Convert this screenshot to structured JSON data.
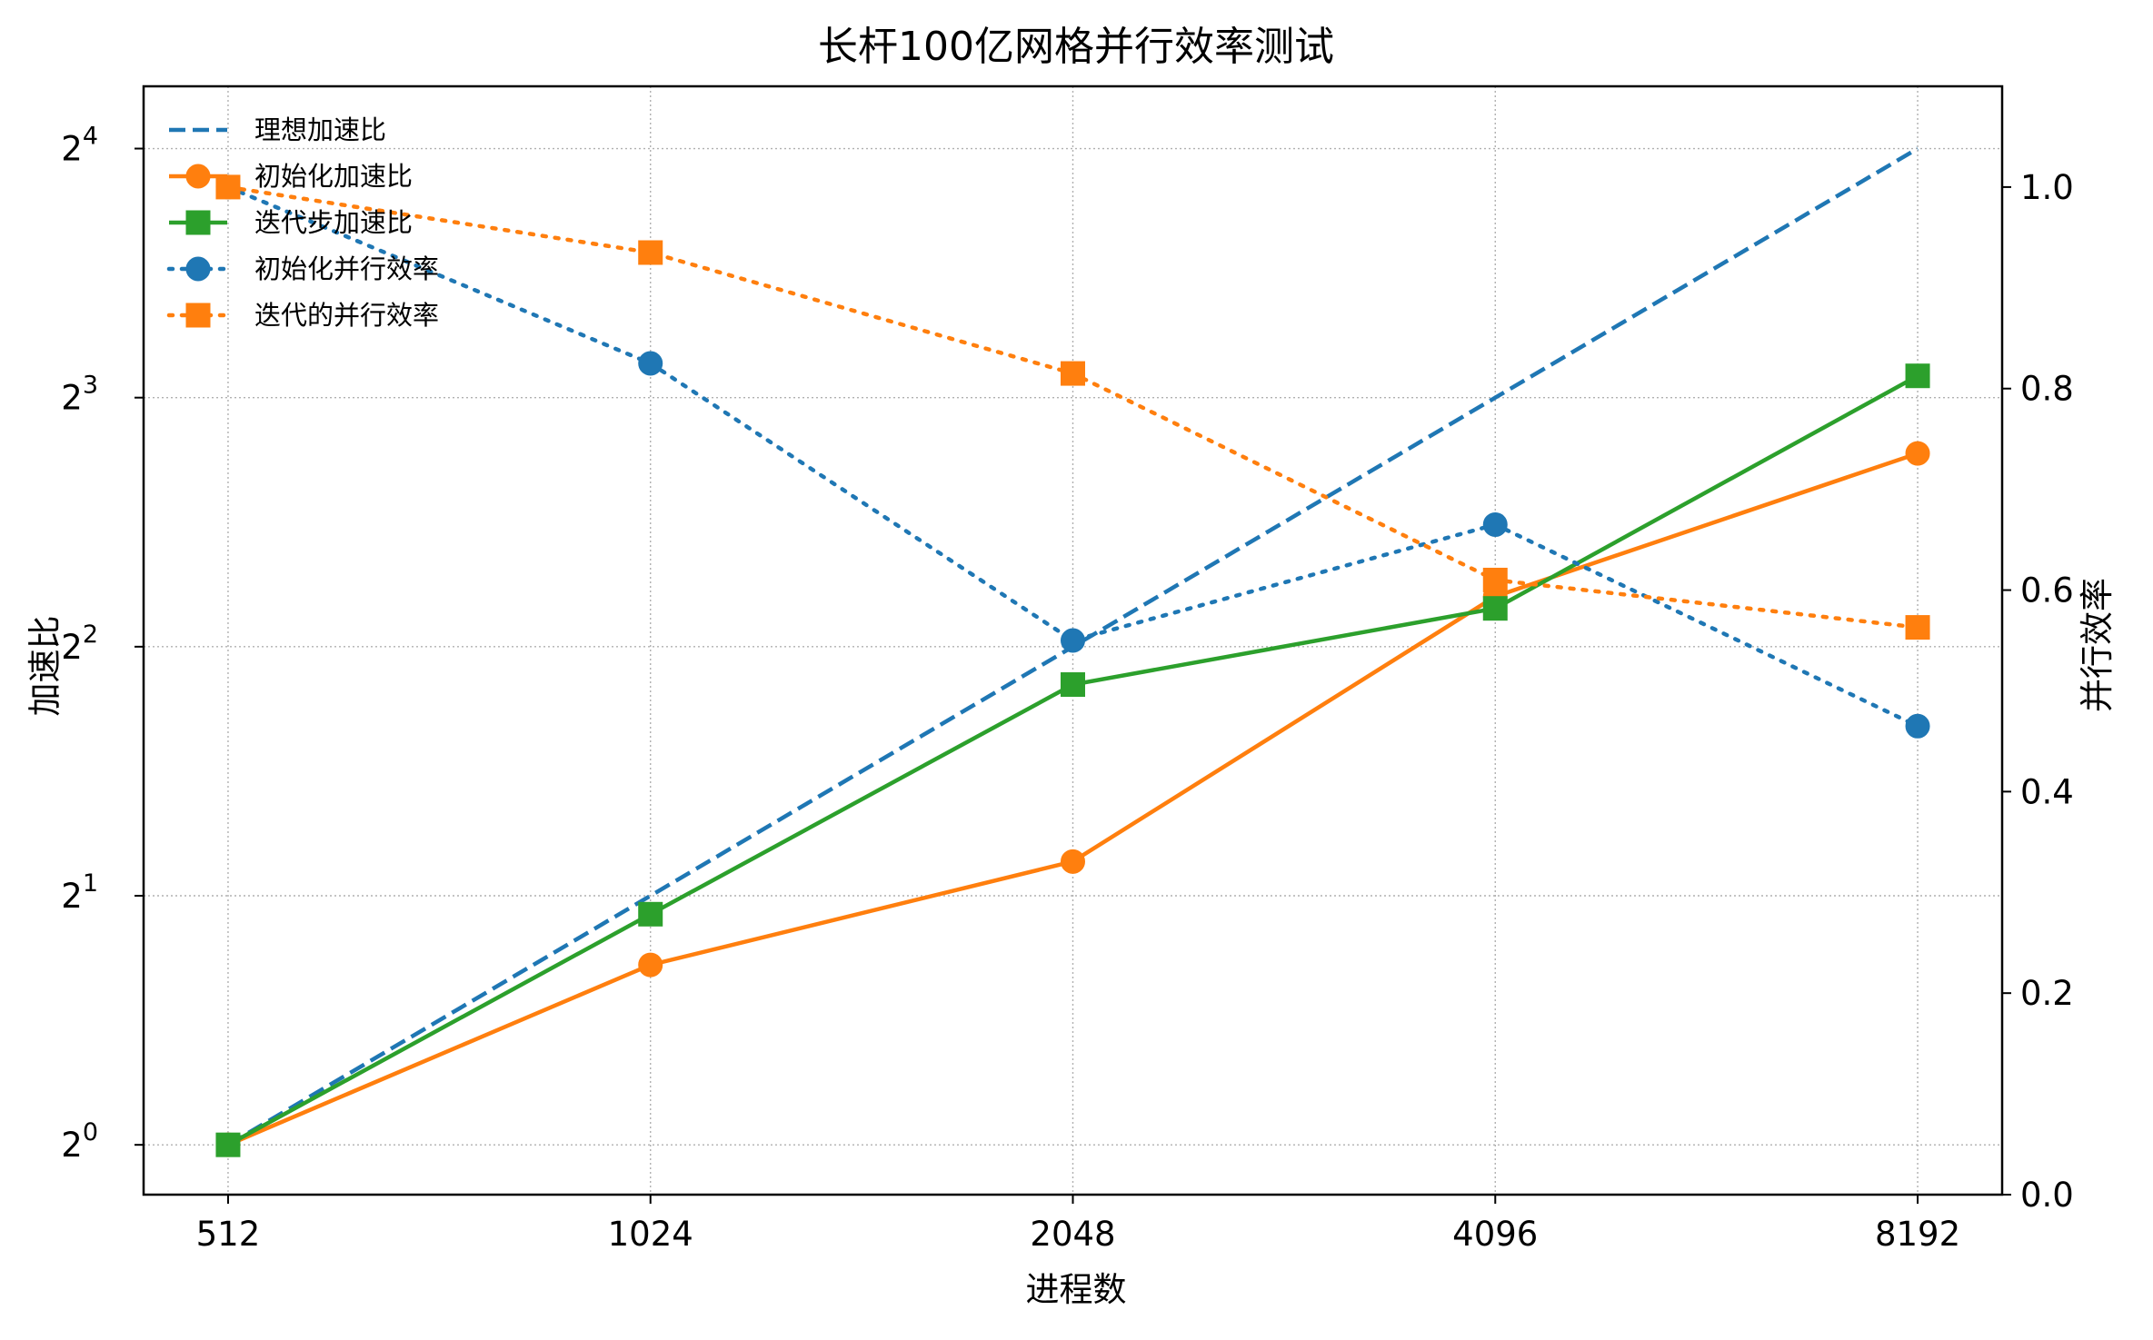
{
  "chart_data": {
    "type": "line",
    "title": "长杆100亿网格并行效率测试",
    "xlabel": "进程数",
    "ylabel_left": "加速比",
    "ylabel_right": "并行效率",
    "x": [
      512,
      1024,
      2048,
      4096,
      8192
    ],
    "x_tick_labels": [
      "512",
      "1024",
      "2048",
      "4096",
      "8192"
    ],
    "x_scale": "log2",
    "y_left_scale": "log2",
    "y_left_ticks": [
      {
        "base": "2",
        "exp": "0",
        "value": 1
      },
      {
        "base": "2",
        "exp": "1",
        "value": 2
      },
      {
        "base": "2",
        "exp": "2",
        "value": 4
      },
      {
        "base": "2",
        "exp": "3",
        "value": 8
      },
      {
        "base": "2",
        "exp": "4",
        "value": 16
      }
    ],
    "y_left_lim_log2": [
      -0.2,
      4.25
    ],
    "y_right_lim": [
      0.0,
      1.1
    ],
    "y_right_ticks": [
      "0.0",
      "0.2",
      "0.4",
      "0.6",
      "0.8",
      "1.0"
    ],
    "grid": true,
    "legend_position": "top-left",
    "series": [
      {
        "name": "理想加速比",
        "axis": "left",
        "values": [
          1,
          2,
          4,
          8,
          16
        ],
        "color": "#1f77b4",
        "linestyle": "dashed",
        "marker": "none"
      },
      {
        "name": "初始化加速比",
        "axis": "left",
        "values": [
          1,
          1.65,
          2.2,
          4.6,
          6.85
        ],
        "color": "#ff7f0e",
        "linestyle": "solid",
        "marker": "circle"
      },
      {
        "name": "迭代步加速比",
        "axis": "left",
        "values": [
          1,
          1.9,
          3.6,
          4.45,
          8.5
        ],
        "color": "#2ca02c",
        "linestyle": "solid",
        "marker": "square"
      },
      {
        "name": "初始化并行效率",
        "axis": "right",
        "values": [
          1.0,
          0.825,
          0.55,
          0.665,
          0.465
        ],
        "color": "#1f77b4",
        "linestyle": "dotted",
        "marker": "circle"
      },
      {
        "name": "迭代的并行效率",
        "axis": "right",
        "values": [
          1.0,
          0.935,
          0.815,
          0.61,
          0.563
        ],
        "color": "#ff7f0e",
        "linestyle": "dotted",
        "marker": "square"
      }
    ]
  }
}
